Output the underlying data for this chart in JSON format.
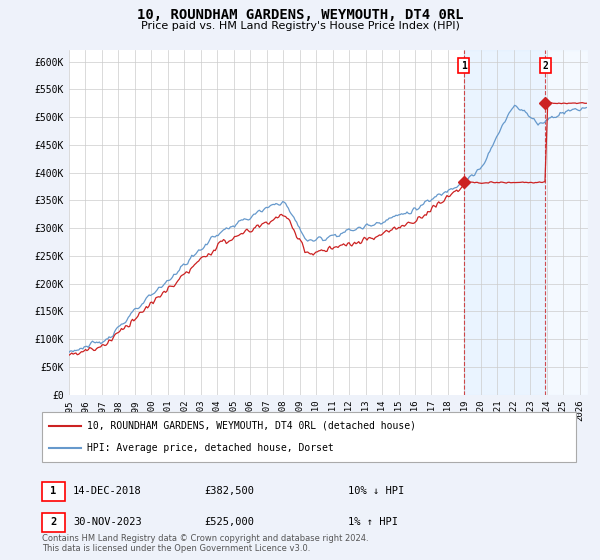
{
  "title": "10, ROUNDHAM GARDENS, WEYMOUTH, DT4 0RL",
  "subtitle": "Price paid vs. HM Land Registry's House Price Index (HPI)",
  "ylabel_ticks": [
    "£0",
    "£50K",
    "£100K",
    "£150K",
    "£200K",
    "£250K",
    "£300K",
    "£350K",
    "£400K",
    "£450K",
    "£500K",
    "£550K",
    "£600K"
  ],
  "ytick_values": [
    0,
    50000,
    100000,
    150000,
    200000,
    250000,
    300000,
    350000,
    400000,
    450000,
    500000,
    550000,
    600000
  ],
  "ylim": [
    0,
    620000
  ],
  "xlim_start": 1995.0,
  "xlim_end": 2026.5,
  "hpi_color": "#6699cc",
  "price_color": "#cc2222",
  "marker1_date": 2018.95,
  "marker1_price": 382500,
  "marker1_label": "1",
  "marker2_date": 2023.92,
  "marker2_price": 525000,
  "marker2_label": "2",
  "legend_line1": "10, ROUNDHAM GARDENS, WEYMOUTH, DT4 0RL (detached house)",
  "legend_line2": "HPI: Average price, detached house, Dorset",
  "annotation1_date": "14-DEC-2018",
  "annotation1_price": "£382,500",
  "annotation1_hpi": "10% ↓ HPI",
  "annotation2_date": "30-NOV-2023",
  "annotation2_price": "£525,000",
  "annotation2_hpi": "1% ↑ HPI",
  "footer": "Contains HM Land Registry data © Crown copyright and database right 2024.\nThis data is licensed under the Open Government Licence v3.0.",
  "background_color": "#eef2fa",
  "plot_bg_color": "#ffffff",
  "grid_color": "#cccccc",
  "shade_color": "#ddeeff"
}
